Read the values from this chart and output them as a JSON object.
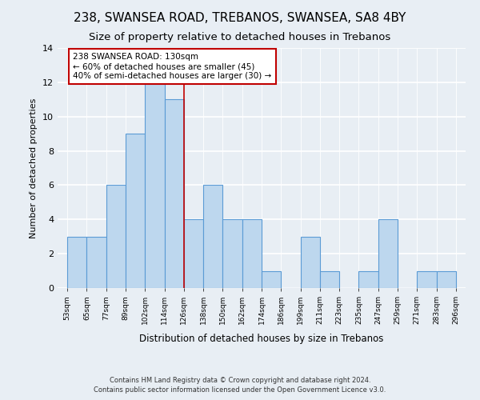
{
  "title": "238, SWANSEA ROAD, TREBANOS, SWANSEA, SA8 4BY",
  "subtitle": "Size of property relative to detached houses in Trebanos",
  "xlabel": "Distribution of detached houses by size in Trebanos",
  "ylabel": "Number of detached properties",
  "bin_labels": [
    "53sqm",
    "65sqm",
    "77sqm",
    "89sqm",
    "102sqm",
    "114sqm",
    "126sqm",
    "138sqm",
    "150sqm",
    "162sqm",
    "174sqm",
    "186sqm",
    "199sqm",
    "211sqm",
    "223sqm",
    "235sqm",
    "247sqm",
    "259sqm",
    "271sqm",
    "283sqm",
    "296sqm"
  ],
  "counts20": [
    3,
    3,
    6,
    9,
    12,
    11,
    4,
    6,
    4,
    4,
    1,
    0,
    3,
    1,
    0,
    1,
    4,
    0,
    1,
    1
  ],
  "bar_color": "#bdd7ee",
  "bar_edge_color": "#5b9bd5",
  "vline_x": 6,
  "vline_color": "#c00000",
  "annotation_text": "238 SWANSEA ROAD: 130sqm\n← 60% of detached houses are smaller (45)\n40% of semi-detached houses are larger (30) →",
  "annotation_box_color": "#ffffff",
  "annotation_box_edge": "#c00000",
  "ylim": [
    0,
    14
  ],
  "yticks": [
    0,
    2,
    4,
    6,
    8,
    10,
    12,
    14
  ],
  "footer_line1": "Contains HM Land Registry data © Crown copyright and database right 2024.",
  "footer_line2": "Contains public sector information licensed under the Open Government Licence v3.0.",
  "bg_color": "#e8eef4",
  "plot_bg_color": "#e8eef4",
  "grid_color": "#ffffff",
  "title_fontsize": 11,
  "subtitle_fontsize": 9.5
}
